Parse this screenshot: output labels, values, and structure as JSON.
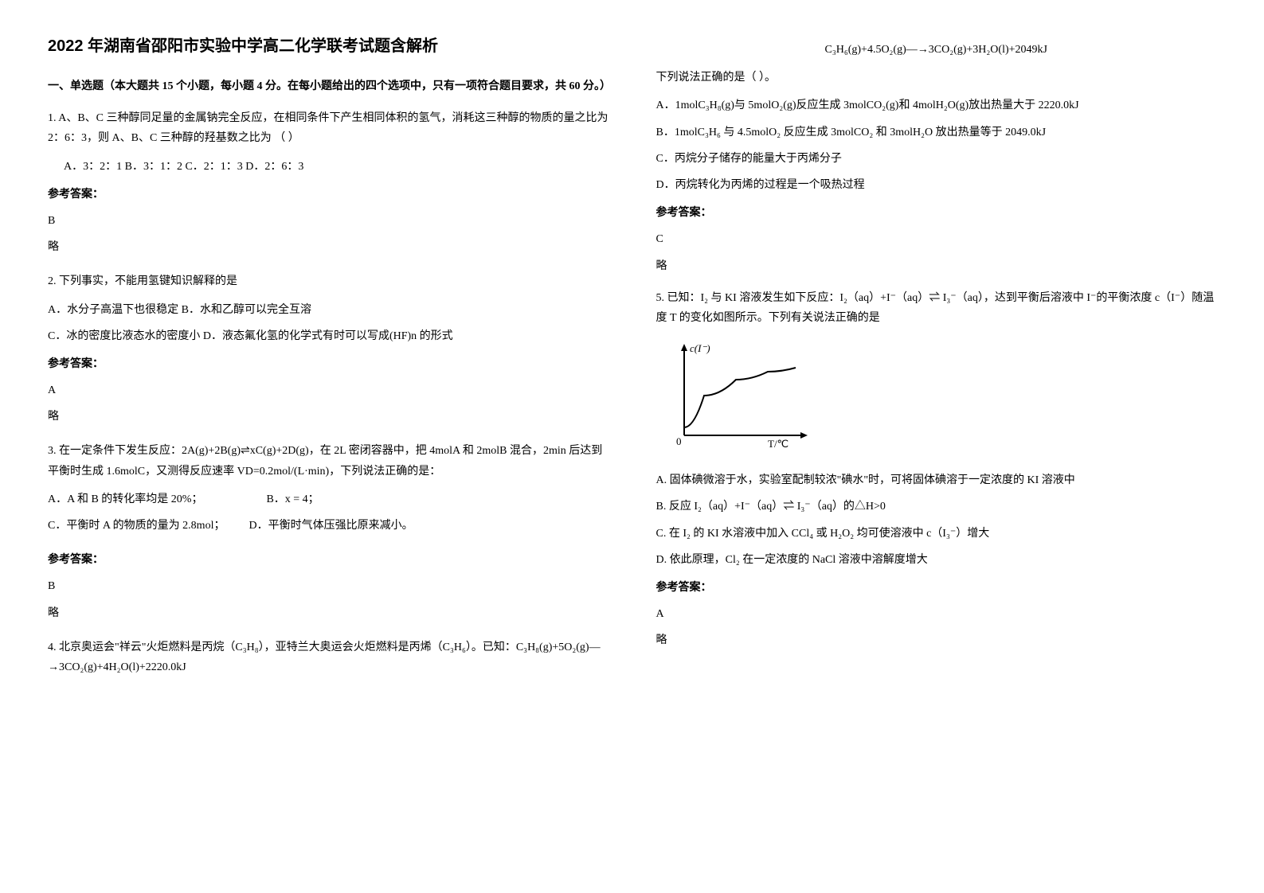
{
  "title": "2022 年湖南省邵阳市实验中学高二化学联考试题含解析",
  "section1": {
    "header": "一、单选题（本大题共 15 个小题，每小题 4 分。在每小题给出的四个选项中，只有一项符合题目要求，共 60 分。）"
  },
  "q1": {
    "text": "1. A、B、C 三种醇同足量的金属钠完全反应，在相同条件下产生相同体积的氢气，消耗这三种醇的物质的量之比为 2：6：3，则 A、B、C 三种醇的羟基数之比为  （   ）",
    "options": "A．3：2：1  B．3：1：2   C．2：1：3   D．2：6：3",
    "answer_label": "参考答案：",
    "answer": "B",
    "omit": "略"
  },
  "q2": {
    "text": "2. 下列事实，不能用氢键知识解释的是",
    "optA": "A．水分子高温下也很稳定    B．水和乙醇可以完全互溶",
    "optC": "C．冰的密度比液态水的密度小  D．液态氟化氢的化学式有时可以写成(HF)n 的形式",
    "answer_label": "参考答案：",
    "answer": "A",
    "omit": "略"
  },
  "q3": {
    "text": "3. 在一定条件下发生反应：2A(g)+2B(g)⇌xC(g)+2D(g)，在 2L 密闭容器中，把 4molA 和 2molB 混合，2min 后达到平衡时生成 1.6molC，又测得反应速率 VD=0.2mol/(L·min)，下列说法正确的是：",
    "optA": "A．A 和 B 的转化率均是 20%；",
    "optB": "B．x = 4；",
    "optC": "C．平衡时 A 的物质的量为 2.8mol；",
    "optD": "D．平衡时气体压强比原来减小。",
    "answer_label": "参考答案：",
    "answer": "B",
    "omit": "略"
  },
  "q4": {
    "text": "4. 北京奥运会\"祥云\"火炬燃料是丙烷（C₃H₈），亚特兰大奥运会火炬燃料是丙烯（C₃H₆）。已知：C₃H₈(g)+5O₂(g)—→3CO₂(g)+4H₂O(l)+2220.0kJ",
    "formula": "C₃H₆(g)+4.5O₂(g)—→3CO₂(g)+3H₂O(l)+2049kJ",
    "subtext": "下列说法正确的是（      ）。",
    "optA": "A．1molC₃H₈(g)与 5molO₂(g)反应生成 3molCO₂(g)和 4molH₂O(g)放出热量大于 2220.0kJ",
    "optB": "B．1molC₃H₆ 与 4.5molO₂ 反应生成 3molCO₂ 和 3molH₂O 放出热量等于 2049.0kJ",
    "optC": "C．丙烷分子储存的能量大于丙烯分子",
    "optD": "D．丙烷转化为丙烯的过程是一个吸热过程",
    "answer_label": "参考答案：",
    "answer": "C",
    "omit": "略"
  },
  "q5": {
    "text": "5. 已知：I₂ 与 KI 溶液发生如下反应：I₂（aq）+I⁻（aq）⇌ I₃⁻（aq），达到平衡后溶液中 I⁻的平衡浓度 c（I⁻）随温度 T 的变化如图所示。下列有关说法正确的是",
    "optA": "A. 固体碘微溶于水，实验室配制较浓\"碘水\"时，可将固体碘溶于一定浓度的 KI 溶液中",
    "optB": "B. 反应 I₂（aq）+I⁻（aq）⇌ I₃⁻（aq）的△H>0",
    "optC": "C. 在 I₂ 的 KI 水溶液中加入 CCl₄ 或 H₂O₂ 均可使溶液中 c（I₃⁻）增大",
    "optD": "D. 依此原理，Cl₂ 在一定浓度的 NaCl 溶液中溶解度增大",
    "answer_label": "参考答案：",
    "answer": "A",
    "omit": "略"
  },
  "chart": {
    "type": "line",
    "y_label": "c(I⁻)",
    "x_label": "T/℃",
    "width": 180,
    "height": 140,
    "axis_color": "#000000",
    "curve_color": "#000000",
    "background_color": "#ffffff",
    "line_width": 2,
    "curve_points": [
      [
        15,
        110
      ],
      [
        40,
        70
      ],
      [
        80,
        50
      ],
      [
        120,
        40
      ],
      [
        155,
        35
      ]
    ]
  }
}
